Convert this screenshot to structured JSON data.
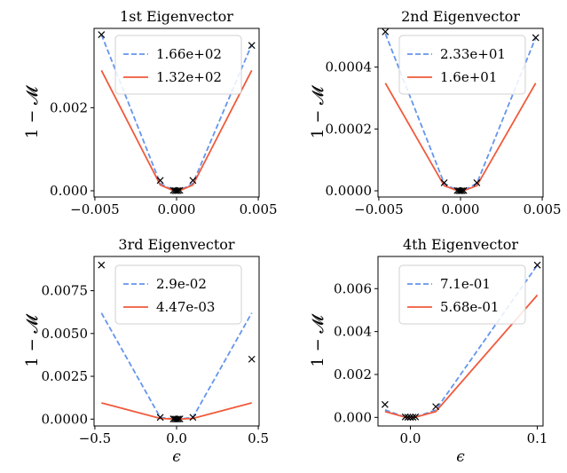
{
  "colors": {
    "dashed_series": "#6495ed",
    "solid_series": "#f05a3c",
    "marker": "#000000",
    "axes": "#000000",
    "legend_border": "#d0d0d0"
  },
  "chart_data": [
    {
      "type": "line",
      "title": "1st Eigenvector",
      "xlabel": "",
      "ylabel": "1 − 𝓜",
      "xlim": [
        -0.00505,
        0.00505
      ],
      "ylim": [
        -0.00015,
        0.00391
      ],
      "xticks": [
        -0.005,
        0.0,
        0.005
      ],
      "xtick_labels": [
        "−0.005",
        "0.000",
        "0.005"
      ],
      "yticks": [
        0.0,
        0.002
      ],
      "ytick_labels": [
        "0.000",
        "0.002"
      ],
      "legend": "top-center",
      "grid": false,
      "x": [
        -0.0046,
        -0.001,
        -0.0002,
        -0.0001,
        0.0,
        0.0001,
        0.0002,
        0.001,
        0.0046
      ],
      "series": [
        {
          "name": "1.66e+02",
          "style": "dashed",
          "values": [
            0.00376,
            0.00018,
            6e-06,
            1.7e-06,
            0.0,
            1.7e-06,
            6e-06,
            0.00018,
            0.00352
          ]
        },
        {
          "name": "1.32e+02",
          "style": "solid",
          "values": [
            0.0029,
            0.00014,
            5.5e-06,
            1.4e-06,
            0.0,
            1.4e-06,
            5.5e-06,
            0.00014,
            0.0029
          ]
        }
      ],
      "markers": {
        "style": "x",
        "points": [
          [
            -0.0046,
            0.00376
          ],
          [
            -0.001,
            0.00025
          ],
          [
            -0.0002,
            1e-05
          ],
          [
            -0.0001,
            3e-06
          ],
          [
            0.0,
            0.0
          ],
          [
            0.0001,
            3e-06
          ],
          [
            0.0002,
            1e-05
          ],
          [
            0.001,
            0.00025
          ],
          [
            0.0046,
            0.0035
          ]
        ]
      }
    },
    {
      "type": "line",
      "title": "2nd Eigenvector",
      "xlabel": "",
      "ylabel": "1 − 𝓜",
      "xlim": [
        -0.00505,
        0.00505
      ],
      "ylim": [
        -2e-05,
        0.000525
      ],
      "xticks": [
        -0.005,
        0.0,
        0.005
      ],
      "xtick_labels": [
        "−0.005",
        "0.000",
        "0.005"
      ],
      "yticks": [
        0.0,
        0.0002,
        0.0004
      ],
      "ytick_labels": [
        "0.0000",
        "0.0002",
        "0.0004"
      ],
      "legend": "top-center",
      "grid": false,
      "x": [
        -0.0046,
        -0.001,
        -0.0002,
        -0.0001,
        0.0,
        0.0001,
        0.0002,
        0.001,
        0.0046
      ],
      "series": [
        {
          "name": "2.33e+01",
          "style": "dashed",
          "values": [
            0.000508,
            2.4e-05,
            9e-07,
            2e-07,
            0.0,
            2e-07,
            9e-07,
            2.4e-05,
            0.000495
          ]
        },
        {
          "name": "1.6e+01",
          "style": "solid",
          "values": [
            0.000348,
            1.65e-05,
            7e-07,
            2e-07,
            0.0,
            2e-07,
            7e-07,
            1.65e-05,
            0.000348
          ]
        }
      ],
      "markers": {
        "style": "x",
        "points": [
          [
            -0.0046,
            0.000514
          ],
          [
            -0.001,
            2.6e-05
          ],
          [
            -0.0002,
            1e-06
          ],
          [
            -0.0001,
            3e-07
          ],
          [
            0.0,
            0.0
          ],
          [
            0.0001,
            3e-07
          ],
          [
            0.0002,
            1e-06
          ],
          [
            0.001,
            2.6e-05
          ],
          [
            0.0046,
            0.000495
          ]
        ]
      }
    },
    {
      "type": "line",
      "title": "3rd Eigenvector",
      "xlabel": "ϵ",
      "ylabel": "1 − 𝓜",
      "xlim": [
        -0.505,
        0.505
      ],
      "ylim": [
        -0.0004,
        0.0095
      ],
      "xticks": [
        -0.5,
        0.0,
        0.5
      ],
      "xtick_labels": [
        "−0.5",
        "0.0",
        "0.5"
      ],
      "yticks": [
        0.0,
        0.0025,
        0.005,
        0.0075
      ],
      "ytick_labels": [
        "0.0000",
        "0.0025",
        "0.0050",
        "0.0075"
      ],
      "legend": "top-center",
      "grid": false,
      "x": [
        -0.46,
        -0.1,
        -0.02,
        -0.01,
        0.0,
        0.01,
        0.02,
        0.1,
        0.46
      ],
      "series": [
        {
          "name": "2.9e-02",
          "style": "dashed",
          "values": [
            0.0062,
            0.0001,
            1e-05,
            3e-06,
            0.0,
            3e-06,
            1e-05,
            0.0001,
            0.0062
          ]
        },
        {
          "name": "4.47e-03",
          "style": "solid",
          "values": [
            0.00095,
            4e-05,
            2e-06,
            5e-07,
            0.0,
            5e-07,
            2e-06,
            4e-05,
            0.00095
          ]
        }
      ],
      "markers": {
        "style": "x",
        "points": [
          [
            -0.46,
            0.009
          ],
          [
            -0.1,
            0.0001
          ],
          [
            -0.02,
            1e-05
          ],
          [
            -0.01,
            3e-06
          ],
          [
            0.0,
            0.0
          ],
          [
            0.01,
            3e-06
          ],
          [
            0.02,
            1e-05
          ],
          [
            0.1,
            0.0001
          ],
          [
            0.46,
            0.0035
          ]
        ]
      }
    },
    {
      "type": "line",
      "title": "4th Eigenvector",
      "xlabel": "ϵ",
      "ylabel": "1 − 𝓜",
      "xlim": [
        -0.0255,
        0.1045
      ],
      "ylim": [
        -0.0004,
        0.0075
      ],
      "xticks": [
        0.0,
        0.1
      ],
      "xtick_labels": [
        "0.0",
        "0.1"
      ],
      "yticks": [
        0.0,
        0.002,
        0.004,
        0.006
      ],
      "ytick_labels": [
        "0.000",
        "0.002",
        "0.004",
        "0.006"
      ],
      "legend": "top-left",
      "grid": false,
      "x": [
        -0.02,
        -0.004,
        -0.002,
        0.0,
        0.002,
        0.004,
        0.02,
        0.1
      ],
      "series": [
        {
          "name": "7.1e-01",
          "style": "dashed",
          "values": [
            0.00035,
            1e-05,
            3e-06,
            0.0,
            3e-06,
            1e-05,
            0.00035,
            0.0071
          ]
        },
        {
          "name": "5.68e-01",
          "style": "solid",
          "values": [
            0.00027,
            1e-05,
            3e-06,
            0.0,
            3e-06,
            1e-05,
            0.00027,
            0.0057
          ]
        }
      ],
      "markers": {
        "style": "x",
        "points": [
          [
            -0.02,
            0.0006
          ],
          [
            -0.004,
            2e-05
          ],
          [
            -0.002,
            5e-06
          ],
          [
            0.0,
            0.0
          ],
          [
            0.002,
            5e-06
          ],
          [
            0.004,
            2e-05
          ],
          [
            0.02,
            0.0005
          ],
          [
            0.1,
            0.0071
          ]
        ]
      }
    }
  ]
}
